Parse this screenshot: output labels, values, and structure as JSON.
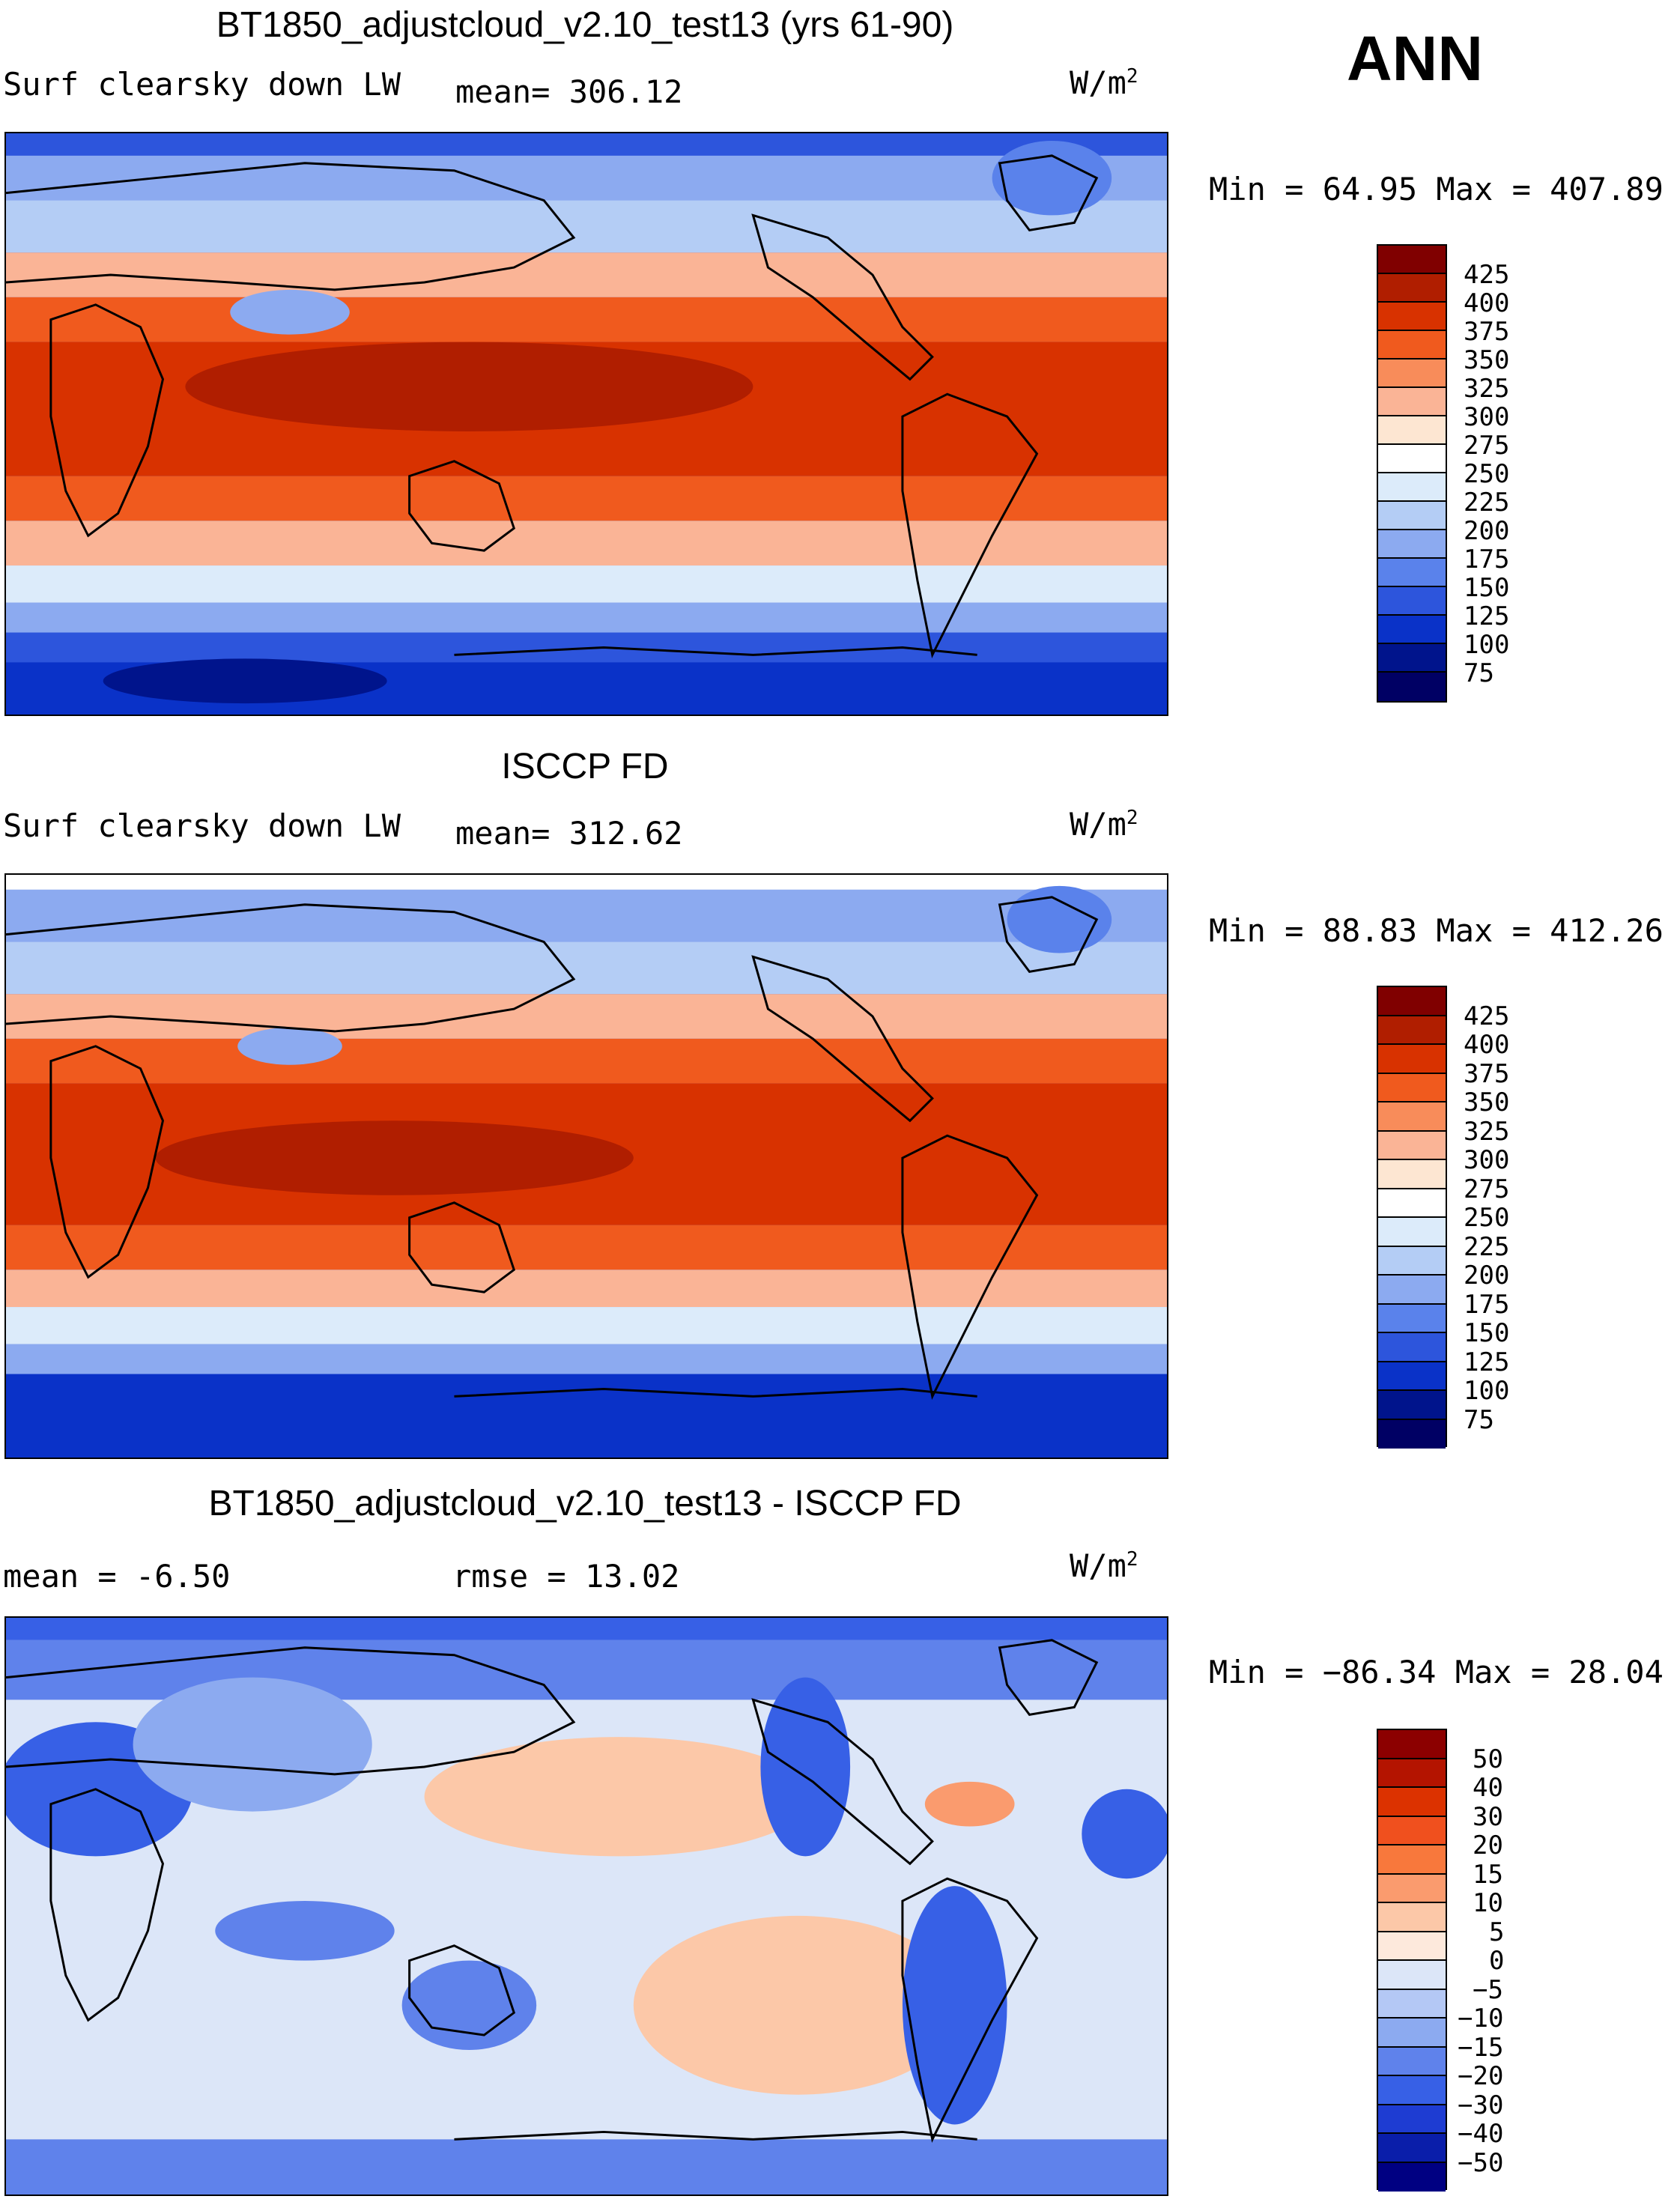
{
  "ann_label": "ANN",
  "panels": [
    {
      "title": "BT1850_adjustcloud_v2.10_test13 (yrs 61-90)",
      "left_label": "Surf clearsky down LW",
      "center_label": "mean= 306.12",
      "units_base": "W/m",
      "units_exp": "2",
      "minmax": "Min =   64.95 Max = 407.89",
      "colorbar_labels": [
        "425",
        "400",
        "375",
        "350",
        "325",
        "300",
        "275",
        "250",
        "225",
        "200",
        "175",
        "150",
        "125",
        "100",
        "75"
      ]
    },
    {
      "title": "ISCCP FD",
      "left_label": "Surf clearsky down LW",
      "center_label": "mean= 312.62",
      "units_base": "W/m",
      "units_exp": "2",
      "minmax": "Min =   88.83 Max = 412.26",
      "colorbar_labels": [
        "425",
        "400",
        "375",
        "350",
        "325",
        "300",
        "275",
        "250",
        "225",
        "200",
        "175",
        "150",
        "125",
        "100",
        "75"
      ]
    },
    {
      "title": "BT1850_adjustcloud_v2.10_test13 - ISCCP FD",
      "left_label": "mean =   -6.50",
      "center_label": "rmse =   13.02",
      "units_base": "W/m",
      "units_exp": "2",
      "minmax": "Min = −86.34 Max =   28.04",
      "colorbar_labels": [
        "50",
        "40",
        "30",
        "20",
        "15",
        "10",
        "5",
        "0",
        "−5",
        "−10",
        "−15",
        "−20",
        "−30",
        "−40",
        "−50"
      ]
    }
  ],
  "colors": {
    "abs_scale": [
      "#800000",
      "#b01e00",
      "#d83200",
      "#f05a1e",
      "#f88c5a",
      "#fab496",
      "#fde6d2",
      "#ffffff",
      "#dcebfa",
      "#b4cdf5",
      "#8caaf0",
      "#5a82eb",
      "#2d55dc",
      "#0a32c8",
      "#00148c",
      "#000064"
    ],
    "diff_scale": [
      "#8c0000",
      "#b41400",
      "#dc3200",
      "#f0501e",
      "#f8783c",
      "#fa9b6e",
      "#fcc8a8",
      "#fde9dc",
      "#dce6f8",
      "#b4c8f5",
      "#8caaf0",
      "#5f82eb",
      "#3760e6",
      "#1e3cd2",
      "#0a1eaa",
      "#000082"
    ]
  }
}
